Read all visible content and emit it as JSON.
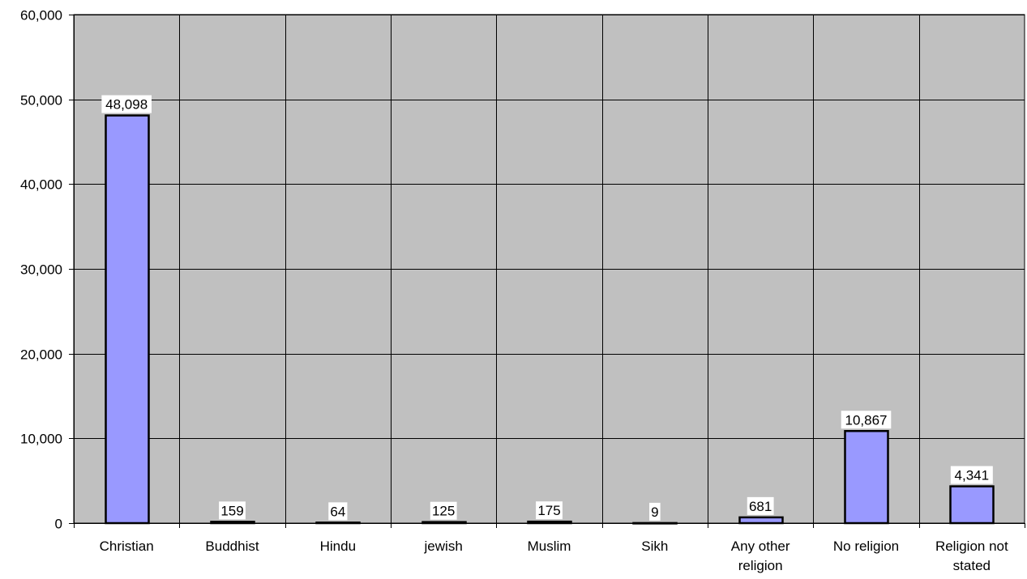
{
  "chart_data": {
    "type": "bar",
    "title": "",
    "xlabel": "",
    "ylabel": "",
    "categories": [
      [
        "Christian"
      ],
      [
        "Buddhist"
      ],
      [
        "Hindu"
      ],
      [
        "jewish"
      ],
      [
        "Muslim"
      ],
      [
        "Sikh"
      ],
      [
        "Any other",
        "religion"
      ],
      [
        "No religion"
      ],
      [
        "Religion not",
        "stated"
      ]
    ],
    "values": [
      48098,
      159,
      64,
      125,
      175,
      9,
      681,
      10867,
      4341
    ],
    "data_labels": [
      "48,098",
      "159",
      "64",
      "125",
      "175",
      "9",
      "681",
      "10,867",
      "4,341"
    ],
    "ylim": [
      0,
      60000
    ],
    "yticks": [
      0,
      10000,
      20000,
      30000,
      40000,
      50000,
      60000
    ],
    "ytick_labels": [
      "0",
      "10,000",
      "20,000",
      "30,000",
      "40,000",
      "50,000",
      "60,000"
    ],
    "grid": true,
    "legend": "none",
    "colors": {
      "bar_fill": "#9999ff",
      "bar_stroke": "#000000",
      "plot_background": "#c0c0c0",
      "grid": "#000000"
    }
  }
}
